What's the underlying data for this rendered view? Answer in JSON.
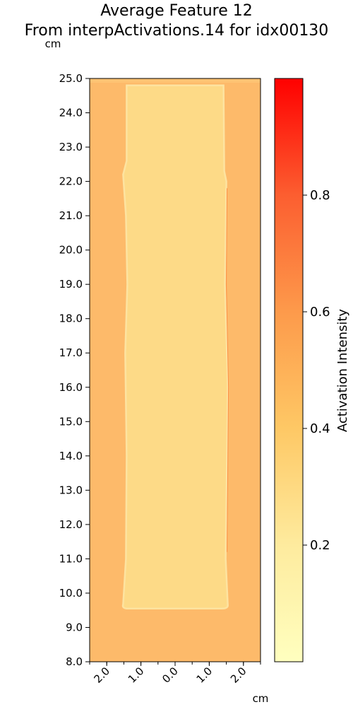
{
  "chart_data": {
    "type": "heatmap",
    "title_line1": "Average Feature 12",
    "title_line2": "From interpActivations.14 for idx00130",
    "y_unit": "cm",
    "x_unit": "cm",
    "ylim": [
      8.0,
      25.0
    ],
    "xlim": [
      -2.5,
      2.5
    ],
    "y_ticks": [
      "8.0",
      "9.0",
      "10.0",
      "11.0",
      "12.0",
      "13.0",
      "14.0",
      "15.0",
      "16.0",
      "17.0",
      "18.0",
      "19.0",
      "20.0",
      "21.0",
      "22.0",
      "23.0",
      "24.0",
      "25.0"
    ],
    "x_ticks": [
      "2.0",
      "1.0",
      "0.0",
      "1.0",
      "2.0"
    ],
    "x_tick_values": [
      -2.0,
      -1.0,
      0.0,
      1.0,
      2.0
    ],
    "colorbar": {
      "label": "Activation Intensity",
      "range": [
        0.0,
        1.0
      ],
      "ticks": [
        "0.2",
        "0.4",
        "0.6",
        "0.8"
      ],
      "tick_values": [
        0.2,
        0.4,
        0.6,
        0.8
      ],
      "colormap": "YlOrRd-like (light yellow to red)"
    },
    "regions": {
      "background_activation": 0.43,
      "center_band_activation": 0.3,
      "center_band_x": [
        -1.5,
        1.5
      ],
      "center_band_y": [
        9.55,
        24.8
      ]
    },
    "colors": {
      "cmap_low": "#ffffbf",
      "cmap_mid": "#fec865",
      "cmap_high": "#ff0000",
      "background": "#fdba6a",
      "center_band": "#fdda87"
    }
  }
}
